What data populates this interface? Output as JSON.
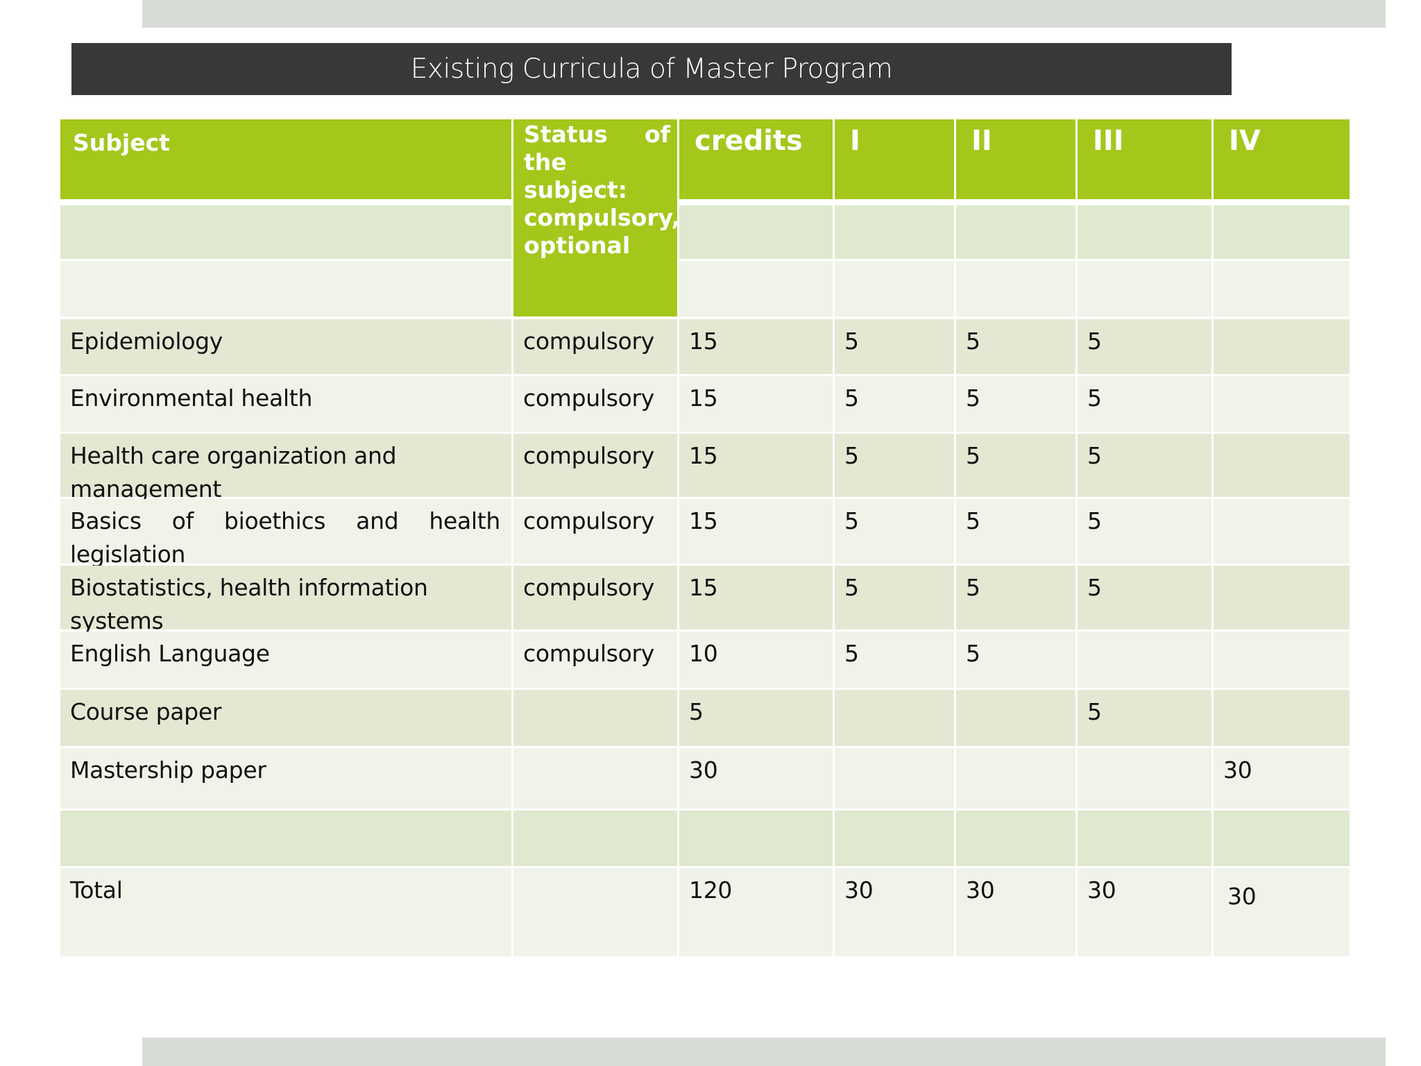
{
  "slide": {
    "title": "Existing Curricula of Master Program"
  },
  "table": {
    "headers": {
      "subject": "Subject",
      "status": "Status of the subject: compulsory, optional",
      "credits": "credits",
      "sem1": "I",
      "sem2": "II",
      "sem3": "III",
      "sem4": "IV"
    },
    "rows": [
      {
        "subject": "Epidemiology",
        "status": "compulsory",
        "credits": "15",
        "sem1": "5",
        "sem2": "5",
        "sem3": "5",
        "sem4": ""
      },
      {
        "subject": "Environmental health",
        "status": "compulsory",
        "credits": "15",
        "sem1": "5",
        "sem2": "5",
        "sem3": "5",
        "sem4": ""
      },
      {
        "subject": "Health care organization and management",
        "status": "compulsory",
        "credits": "15",
        "sem1": "5",
        "sem2": "5",
        "sem3": "5",
        "sem4": ""
      },
      {
        "subject": "Basics of bioethics and health legislation",
        "status": "compulsory",
        "credits": "15",
        "sem1": "5",
        "sem2": "5",
        "sem3": "5",
        "sem4": ""
      },
      {
        "subject": "Biostatistics, health information systems",
        "status": "compulsory",
        "credits": "15",
        "sem1": "5",
        "sem2": "5",
        "sem3": "5",
        "sem4": ""
      },
      {
        "subject": "English  Language",
        "status": "compulsory",
        "credits": "10",
        "sem1": "5",
        "sem2": "5",
        "sem3": "",
        "sem4": ""
      },
      {
        "subject": "Course paper",
        "status": "",
        "credits": "5",
        "sem1": "",
        "sem2": "",
        "sem3": "5",
        "sem4": ""
      },
      {
        "subject": "Mastership paper",
        "status": "",
        "credits": "30",
        "sem1": "",
        "sem2": "",
        "sem3": "",
        "sem4": "30"
      },
      {
        "subject": "",
        "status": "",
        "credits": "",
        "sem1": "",
        "sem2": "",
        "sem3": "",
        "sem4": ""
      },
      {
        "subject": "Total",
        "status": "",
        "credits": "120",
        "sem1": "30",
        "sem2": "30",
        "sem3": "30",
        "sem4": "30"
      }
    ]
  }
}
